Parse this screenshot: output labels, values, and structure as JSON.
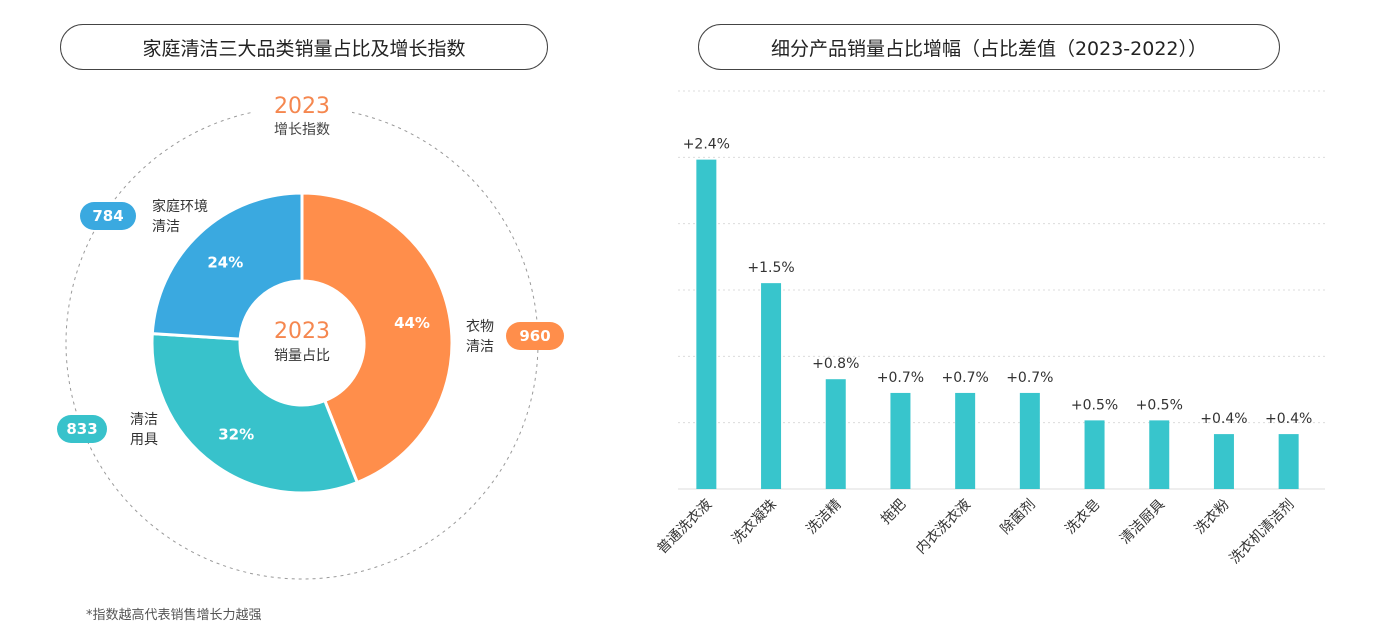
{
  "left_panel": {
    "title": "家庭清洁三大品类销量占比及增长指数",
    "outer_label_year": "2023",
    "outer_label_text": "增长指数",
    "center_year": "2023",
    "center_text": "销量占比",
    "footnote": "*指数越高代表销售增长力越强"
  },
  "right_panel": {
    "title": "细分产品销量占比增幅（占比差值（2023-2022））"
  },
  "colors": {
    "orange": "#FF8E4B",
    "teal": "#38C2CB",
    "blue": "#3AA9E0",
    "bar": "#38C5CC",
    "accent_text": "#F5874F",
    "grid": "#dcdcdc"
  },
  "chart_data": [
    {
      "type": "pie",
      "title": "家庭清洁三大品类销量占比及增长指数",
      "slices": [
        {
          "label_line1": "衣物",
          "label_line2": "清洁",
          "share_label": "44%",
          "value": 44,
          "index": "960",
          "color": "#FF8E4B"
        },
        {
          "label_line1": "清洁",
          "label_line2": "用具",
          "share_label": "32%",
          "value": 32,
          "index": "833",
          "color": "#38C2CB"
        },
        {
          "label_line1": "家庭环境",
          "label_line2": "清洁",
          "share_label": "24%",
          "value": 24,
          "index": "784",
          "color": "#3AA9E0"
        }
      ]
    },
    {
      "type": "bar",
      "title": "细分产品销量占比增幅（占比差值（2023-2022））",
      "categories": [
        "普通洗衣液",
        "洗衣凝珠",
        "洗洁精",
        "拖把",
        "内衣洗衣液",
        "除菌剂",
        "洗衣皂",
        "清洁厨具",
        "洗衣粉",
        "洗衣机清洁剂"
      ],
      "values": [
        2.4,
        1.5,
        0.8,
        0.7,
        0.7,
        0.7,
        0.5,
        0.5,
        0.4,
        0.4
      ],
      "value_labels": [
        "+2.4%",
        "+1.5%",
        "+0.8%",
        "+0.7%",
        "+0.7%",
        "+0.7%",
        "+0.5%",
        "+0.5%",
        "+0.4%",
        "+0.4%"
      ],
      "ylim": [
        0,
        2.9
      ],
      "grid": true
    }
  ]
}
